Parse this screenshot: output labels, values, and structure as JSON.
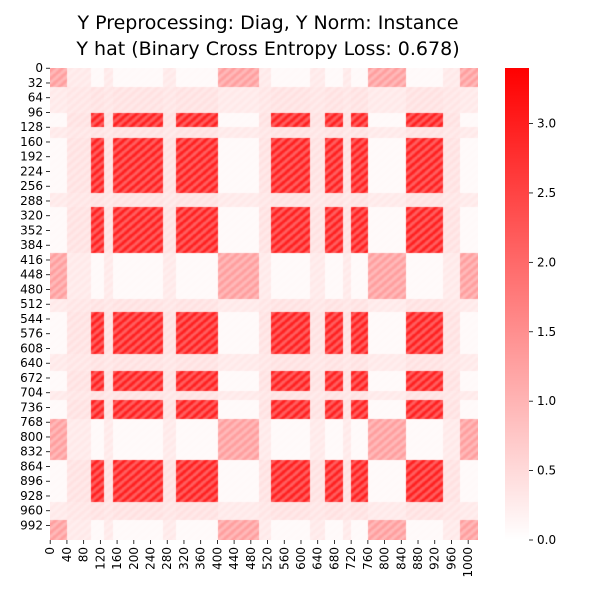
{
  "chart_data": {
    "type": "heatmap",
    "title": "Y Preprocessing: Diag, Y Norm: Instance",
    "subtitle": "Y hat (Binary Cross Entropy Loss: 0.678)",
    "xlabel": "",
    "ylabel": "",
    "n": 1024,
    "x_ticks": [
      "0",
      "40",
      "80",
      "120",
      "160",
      "200",
      "240",
      "280",
      "320",
      "360",
      "400",
      "440",
      "480",
      "520",
      "560",
      "600",
      "640",
      "680",
      "720",
      "760",
      "800",
      "840",
      "880",
      "920",
      "960",
      "1000"
    ],
    "y_ticks": [
      "0",
      "32",
      "64",
      "96",
      "128",
      "160",
      "192",
      "224",
      "256",
      "288",
      "320",
      "352",
      "384",
      "416",
      "448",
      "480",
      "512",
      "544",
      "576",
      "608",
      "640",
      "672",
      "704",
      "736",
      "768",
      "800",
      "832",
      "864",
      "896",
      "928",
      "960",
      "992"
    ],
    "colorbar": {
      "vmin": 0.0,
      "vmax": 3.4,
      "ticks": [
        "0.0",
        "0.5",
        "1.0",
        "1.5",
        "2.0",
        "2.5",
        "3.0"
      ],
      "low_color": "#ffffff",
      "high_color": "#ff0000"
    },
    "axis_groups": {
      "A": [
        [
          96,
          128
        ],
        [
          150,
          270
        ],
        [
          300,
          400
        ],
        [
          528,
          620
        ],
        [
          656,
          700
        ],
        [
          720,
          760
        ],
        [
          850,
          940
        ]
      ],
      "B": [
        [
          0,
          40
        ],
        [
          400,
          500
        ],
        [
          760,
          850
        ],
        [
          980,
          1024
        ]
      ],
      "C": [
        [
          40,
          96
        ],
        [
          128,
          150
        ],
        [
          270,
          300
        ],
        [
          500,
          528
        ],
        [
          620,
          656
        ],
        [
          700,
          720
        ],
        [
          940,
          980
        ]
      ]
    },
    "group_values": {
      "AA": 3.0,
      "BB": 1.3,
      "CC": 0.35,
      "AB": 0.08,
      "AC": 0.4,
      "BC": 0.3
    }
  }
}
